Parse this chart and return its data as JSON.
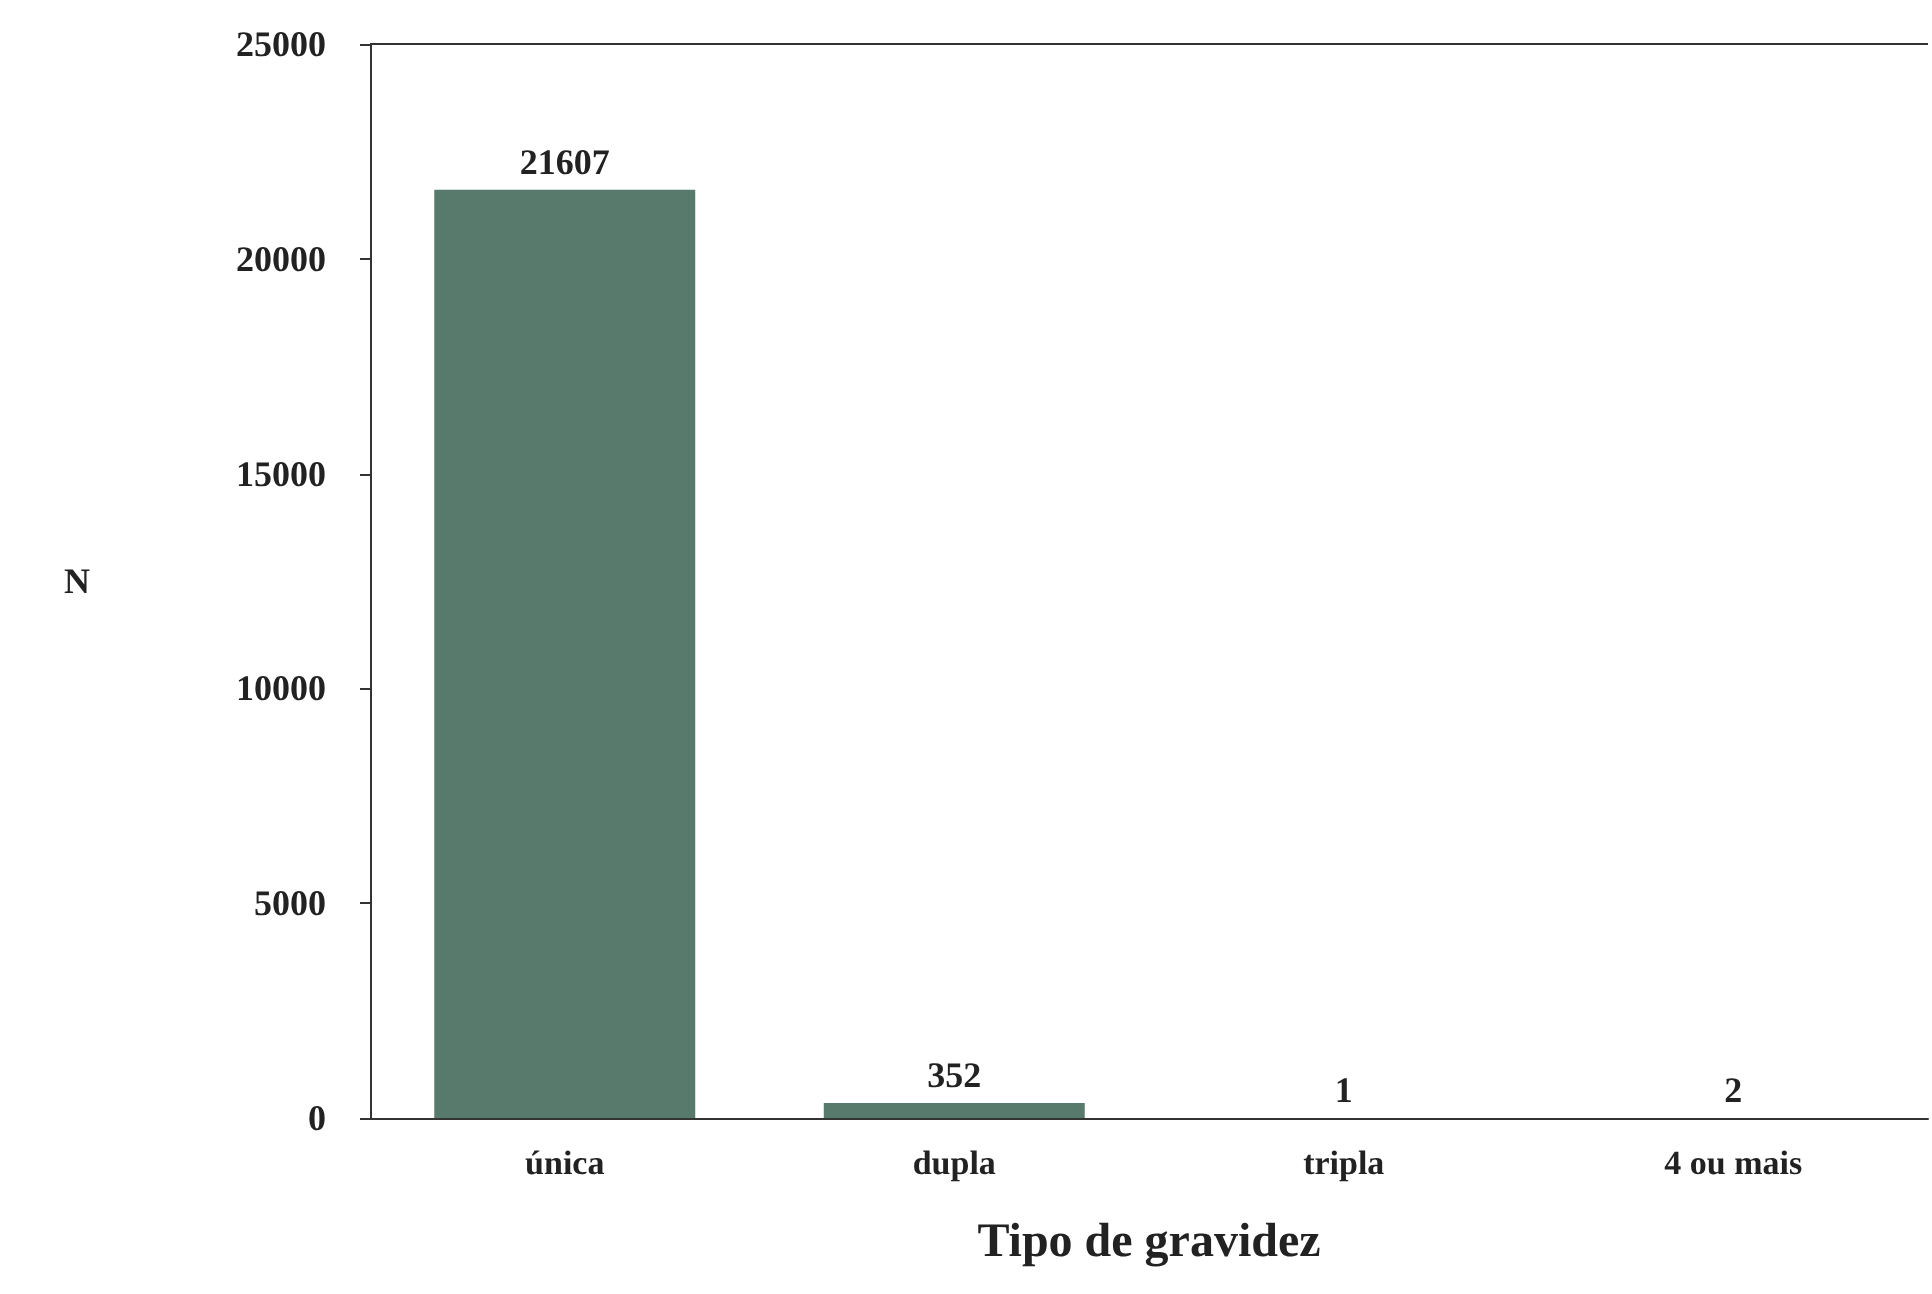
{
  "chart_data": {
    "type": "bar",
    "xlabel": "Tipo de gravidez",
    "ylabel": "N",
    "categories": [
      "única",
      "dupla",
      "tripla",
      "4 ou mais"
    ],
    "values": [
      21607,
      352,
      1,
      2
    ],
    "color": "#587a6c",
    "ylim": [
      0,
      25000
    ],
    "yticks": [
      0,
      5000,
      10000,
      15000,
      20000,
      25000
    ],
    "grid": false,
    "data_labels": true
  }
}
